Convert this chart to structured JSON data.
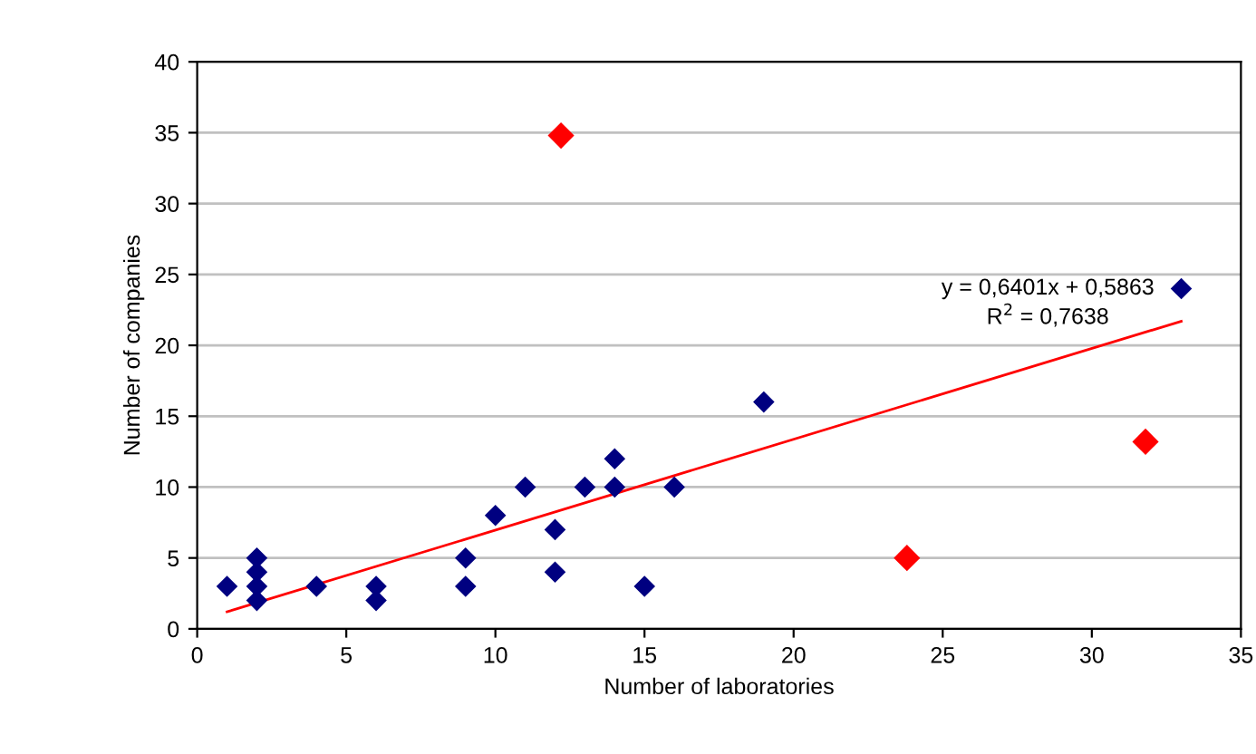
{
  "chart_data": {
    "type": "scatter",
    "xlabel": "Number of laboratories",
    "ylabel": "Number of companies",
    "xlim": [
      0,
      35
    ],
    "ylim": [
      0,
      40
    ],
    "xticks": [
      0,
      5,
      10,
      15,
      20,
      25,
      30,
      35
    ],
    "yticks": [
      0,
      5,
      10,
      15,
      20,
      25,
      30,
      35,
      40
    ],
    "grid": "y",
    "marker": "diamond",
    "series": [
      {
        "color": "#000080",
        "x": [
          1,
          2,
          2,
          2,
          2,
          4,
          6,
          6,
          9,
          9,
          10,
          11,
          12,
          12,
          13,
          14,
          14,
          15,
          16,
          19,
          33
        ],
        "values": [
          3,
          2,
          3,
          4,
          5,
          3,
          2,
          3,
          3,
          5,
          8,
          10,
          4,
          7,
          10,
          10,
          12,
          3,
          10,
          16,
          24
        ]
      },
      {
        "color": "#ff0000",
        "x": [
          12.2,
          23.8,
          31.8
        ],
        "values": [
          34.8,
          5,
          13.2
        ]
      },
      {
        "type": "line",
        "color": "#ff0000",
        "marker": "none",
        "x": [
          1,
          33
        ],
        "values": [
          1.2,
          21.7
        ]
      }
    ],
    "annotations": [
      "y = 0,6401x + 0,5863",
      "R$^{2}$ = 0,7638"
    ]
  }
}
